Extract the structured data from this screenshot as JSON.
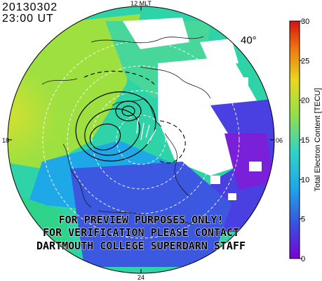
{
  "header": {
    "date": "20130302",
    "time": "23:00 UT"
  },
  "map": {
    "mlt_labels": {
      "top": "12 MLT",
      "left": "18",
      "right": "06",
      "bottom": "24"
    },
    "latitude_label": "40°",
    "watermark": [
      "FOR PREVIEW PURPOSES ONLY!",
      "FOR VERIFICATION PLEASE CONTACT",
      "DARTMOUTH COLLEGE SUPERDARN STAFF"
    ]
  },
  "colorbar": {
    "title": "Total Electron Content [TECU]",
    "ticks": [
      "0",
      "5",
      "10",
      "15",
      "20",
      "25",
      "30"
    ],
    "min": 0,
    "max": 30,
    "colors": [
      "#7a00d9",
      "#3a4fe0",
      "#1ea8e8",
      "#2fd3c8",
      "#8fe04a",
      "#e8d81e",
      "#f07a10",
      "#d81010"
    ]
  }
}
